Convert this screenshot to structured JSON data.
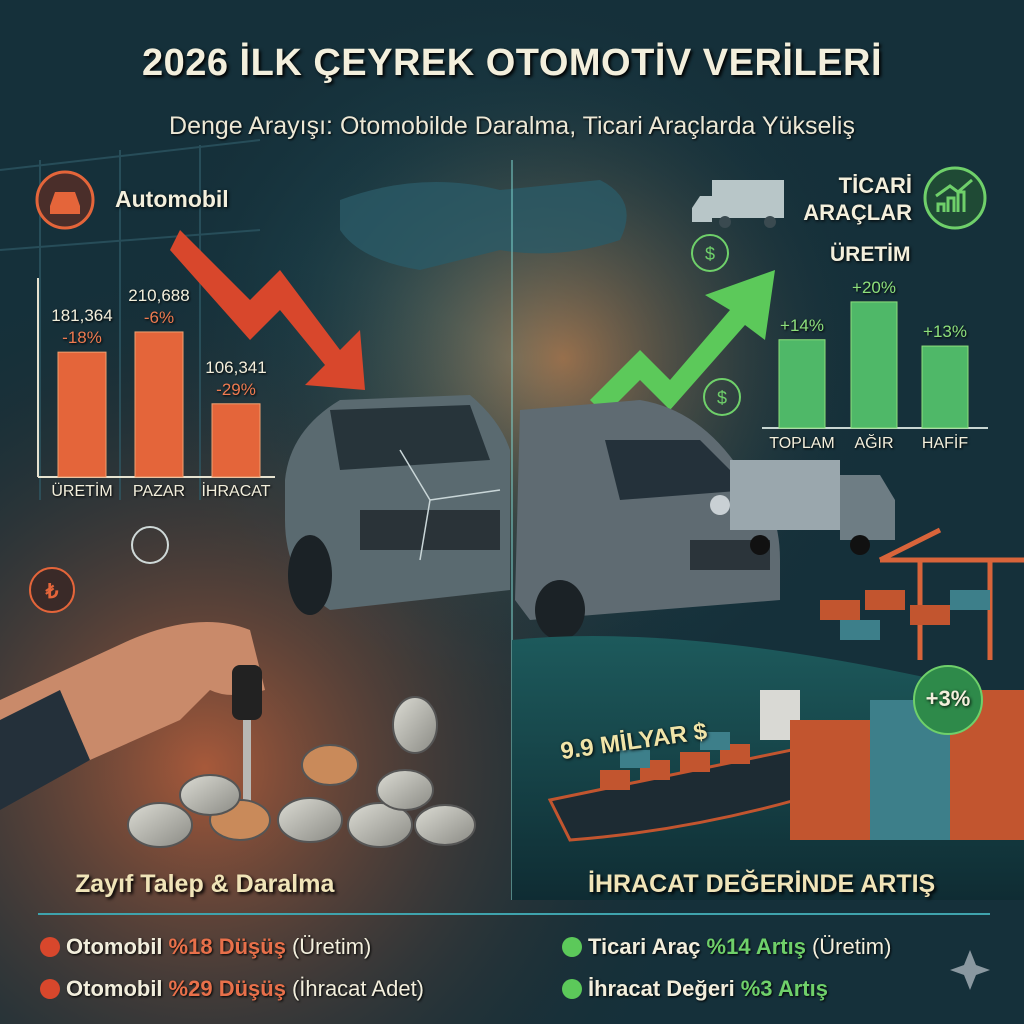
{
  "header": {
    "title": "2026 İLK ÇEYREK OTOMOTİV VERİLERİ",
    "subtitle": "Denge Arayışı: Otomobilde Daralma, Ticari Araçlarda Yükseliş"
  },
  "left": {
    "section_label": "Automobil",
    "icon": "car-icon",
    "footer": "Zayıf Talep & Daralma",
    "color": "#e4653a"
  },
  "right": {
    "section_label_1": "TİCARİ",
    "section_label_2": "ARAÇLAR",
    "icon": "chart-up-icon",
    "chart_title": "ÜRETİM",
    "export_value": "9.9 MİLYAR $",
    "export_change": "+3%",
    "footer": "İHRACAT DEĞERİNDE ARTIŞ",
    "color": "#6fd06a"
  },
  "chart_data": [
    {
      "type": "bar",
      "categories": [
        "ÜRETİM",
        "PAZAR",
        "İHRACAT"
      ],
      "values": [
        181364,
        210688,
        106341
      ],
      "value_labels": [
        "181,364",
        "210,688",
        "106,341"
      ],
      "change_labels": [
        "-18%",
        "-6%",
        "-29%"
      ],
      "grid": false
    },
    {
      "type": "bar",
      "title": "ÜRETİM",
      "categories": [
        "TOPLAM",
        "AĞIR",
        "HAFİF"
      ],
      "values": [
        14,
        20,
        13
      ],
      "value_labels": [
        "+14%",
        "+20%",
        "+13%"
      ],
      "grid": false
    }
  ],
  "summary": {
    "left": [
      {
        "subject": "Otomobil",
        "highlight": "%18 Düşüş",
        "note": "(Üretim)"
      },
      {
        "subject": "Otomobil",
        "highlight": "%29 Düşüş",
        "note": "(İhracat Adet)"
      }
    ],
    "right": [
      {
        "subject": "Ticari Araç",
        "highlight": "%14 Artış",
        "note": "(Üretim)"
      },
      {
        "subject": "İhracat Değeri",
        "highlight": "%3 Artış",
        "note": ""
      }
    ],
    "down_color": "#e4653a",
    "up_color": "#6fd06a"
  }
}
